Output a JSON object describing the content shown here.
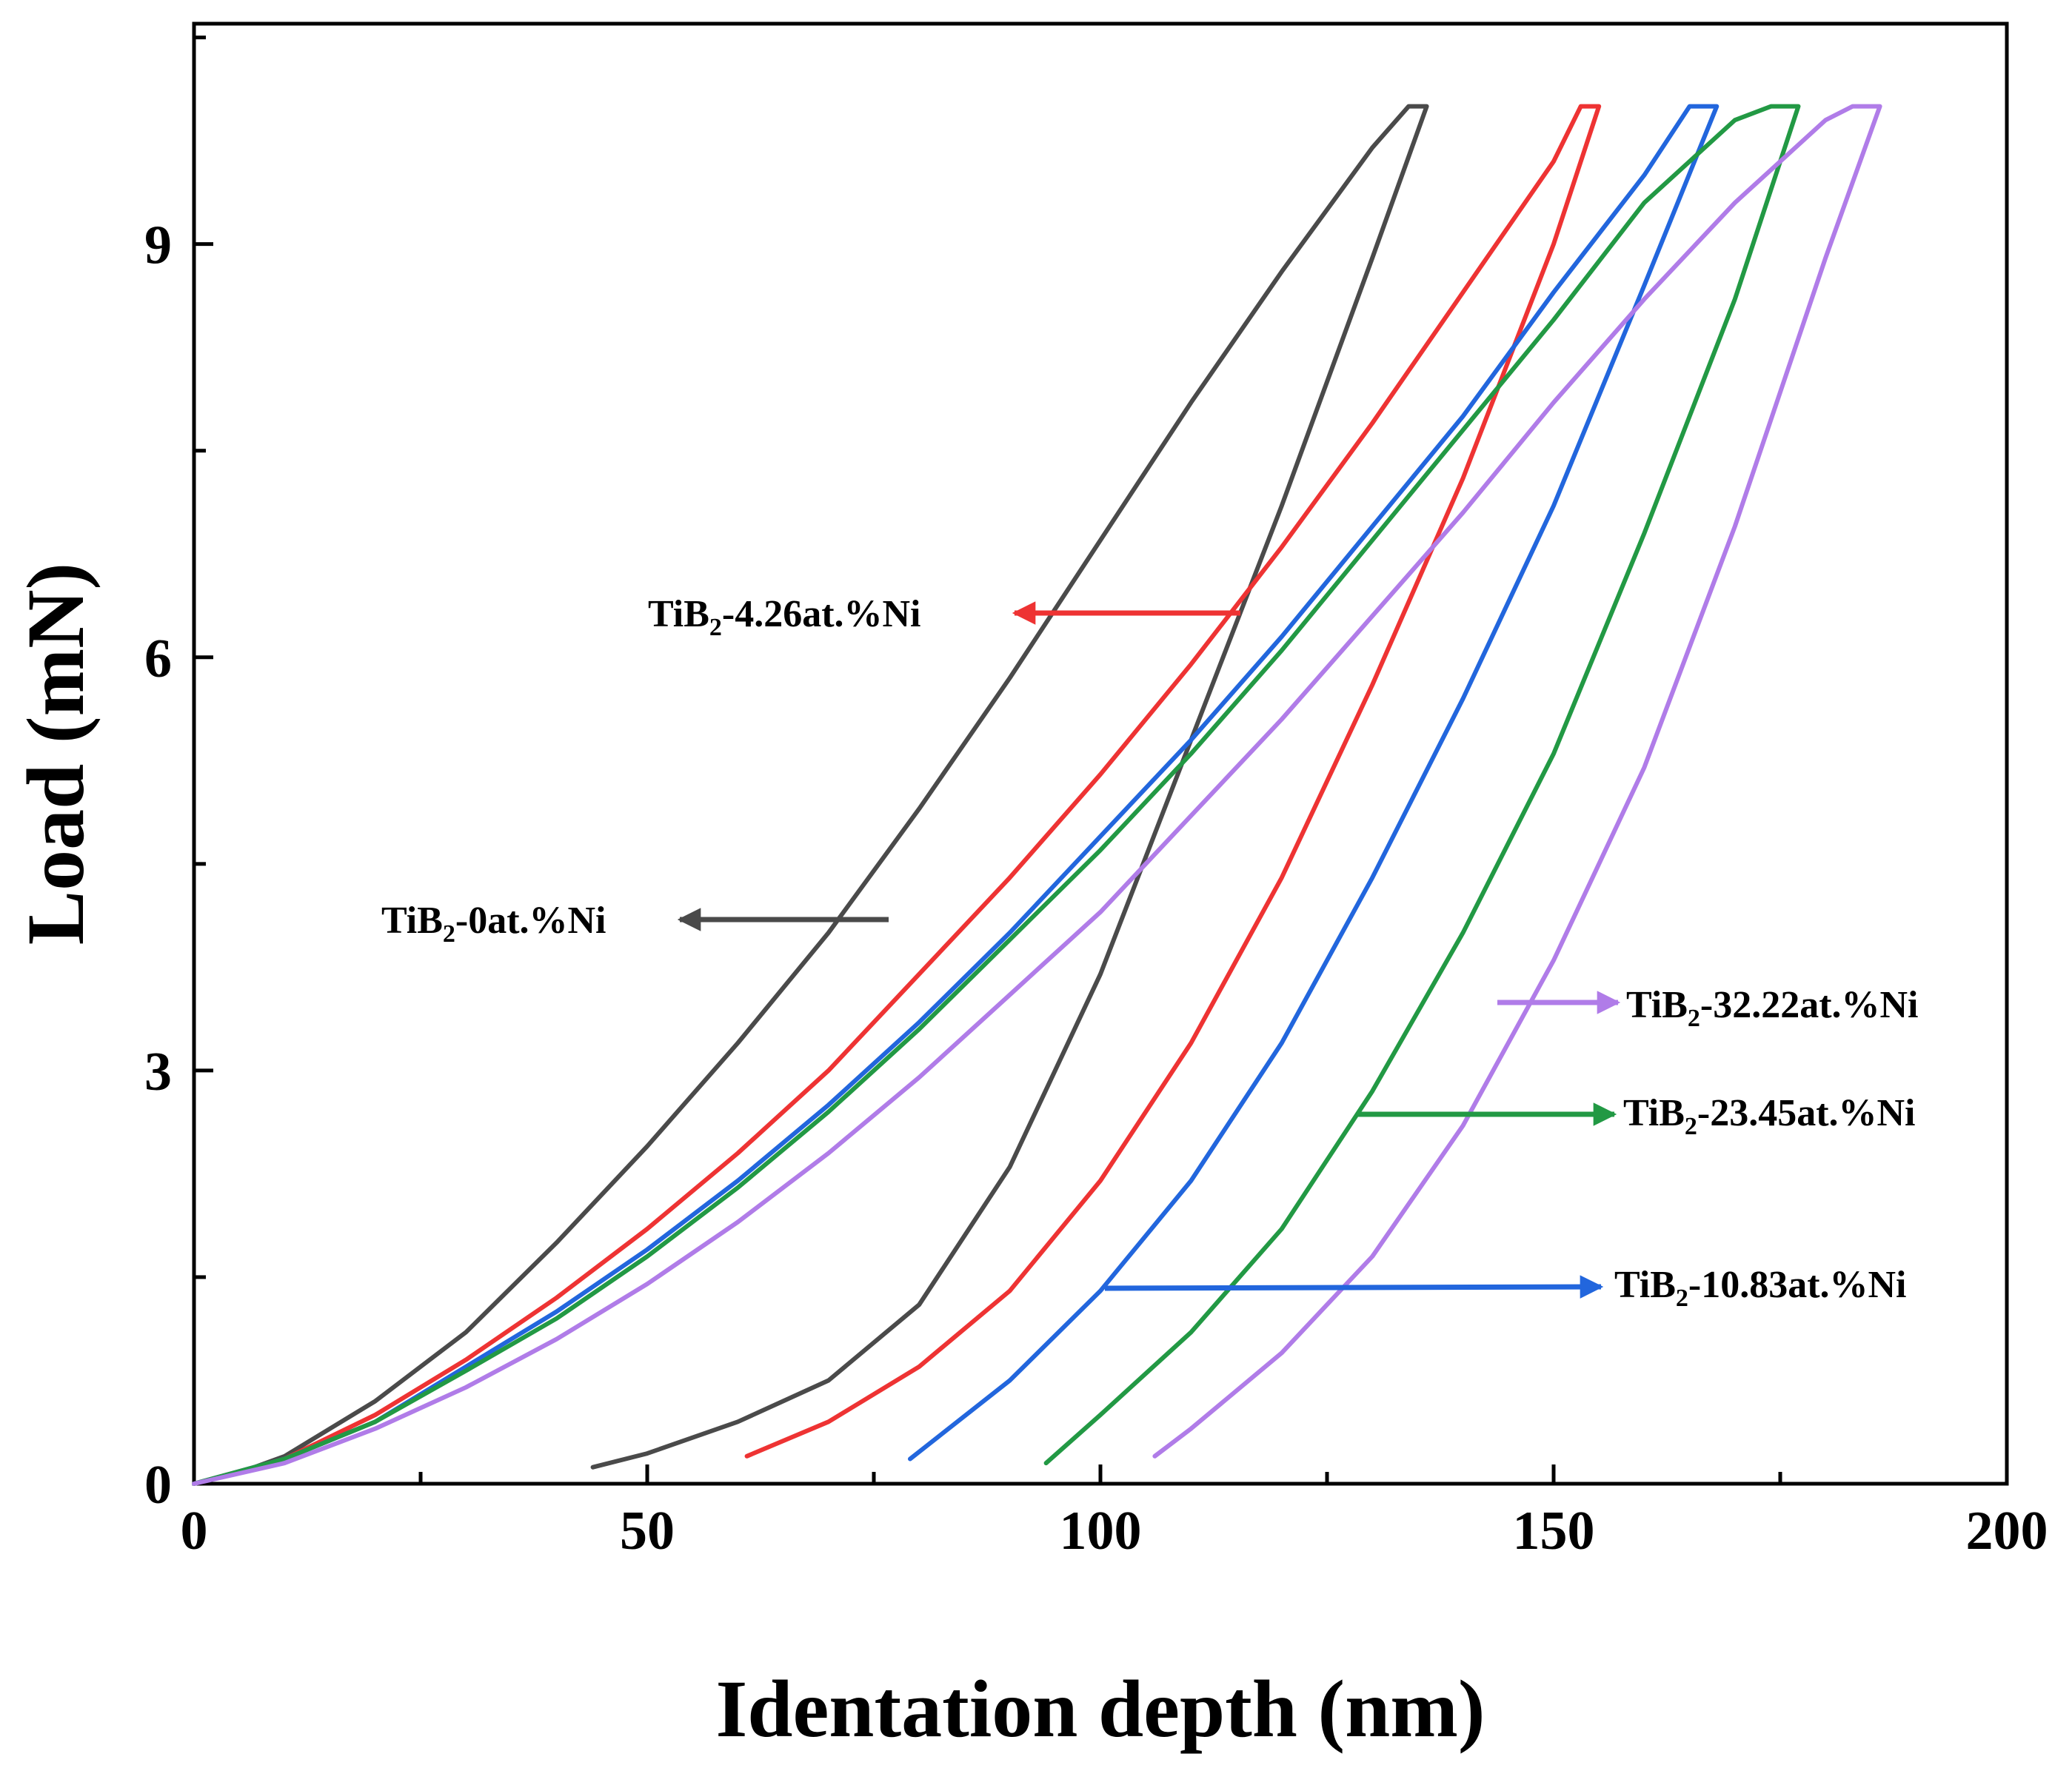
{
  "chart_data": {
    "type": "line",
    "title": "",
    "xlabel": "Identation depth (nm)",
    "ylabel": "Load (mN)",
    "xlim": [
      0,
      200
    ],
    "ylim": [
      0,
      10.6
    ],
    "xticks": [
      0,
      50,
      100,
      150,
      200
    ],
    "yticks": [
      0,
      3,
      6,
      9
    ],
    "grid": false,
    "series": [
      {
        "name": "TiB2-0at.%Ni",
        "label_main": "TiB",
        "label_sub": "2",
        "label_rest": "-0at.%Ni",
        "color": "#4a4a4a",
        "max_depth": 136,
        "max_load": 10.0,
        "residual_depth": 44,
        "loading": [
          [
            0,
            0
          ],
          [
            5,
            0.08
          ],
          [
            10,
            0.2
          ],
          [
            20,
            0.6
          ],
          [
            30,
            1.1
          ],
          [
            40,
            1.75
          ],
          [
            50,
            2.45
          ],
          [
            60,
            3.2
          ],
          [
            70,
            4.0
          ],
          [
            80,
            4.9
          ],
          [
            90,
            5.85
          ],
          [
            100,
            6.85
          ],
          [
            110,
            7.85
          ],
          [
            120,
            8.8
          ],
          [
            130,
            9.7
          ],
          [
            134,
            10.0
          ]
        ],
        "unloading": [
          [
            136,
            10.0
          ],
          [
            130,
            8.9
          ],
          [
            120,
            7.1
          ],
          [
            110,
            5.4
          ],
          [
            100,
            3.7
          ],
          [
            90,
            2.3
          ],
          [
            80,
            1.3
          ],
          [
            70,
            0.75
          ],
          [
            60,
            0.45
          ],
          [
            50,
            0.22
          ],
          [
            44,
            0.12
          ]
        ]
      },
      {
        "name": "TiB2-4.26at.%Ni",
        "label_main": "TiB",
        "label_sub": "2",
        "label_rest": "-4.26at.%Ni",
        "color": "#ee3333",
        "max_depth": 155,
        "max_load": 10.0,
        "residual_depth": 61,
        "loading": [
          [
            0,
            0
          ],
          [
            10,
            0.18
          ],
          [
            20,
            0.5
          ],
          [
            30,
            0.9
          ],
          [
            40,
            1.35
          ],
          [
            50,
            1.85
          ],
          [
            60,
            2.4
          ],
          [
            70,
            3.0
          ],
          [
            80,
            3.7
          ],
          [
            90,
            4.4
          ],
          [
            100,
            5.15
          ],
          [
            110,
            5.95
          ],
          [
            120,
            6.8
          ],
          [
            130,
            7.7
          ],
          [
            140,
            8.65
          ],
          [
            150,
            9.6
          ],
          [
            153,
            10.0
          ]
        ],
        "unloading": [
          [
            155,
            10.0
          ],
          [
            150,
            9.0
          ],
          [
            140,
            7.3
          ],
          [
            130,
            5.8
          ],
          [
            120,
            4.4
          ],
          [
            110,
            3.2
          ],
          [
            100,
            2.2
          ],
          [
            90,
            1.4
          ],
          [
            80,
            0.85
          ],
          [
            70,
            0.45
          ],
          [
            61,
            0.2
          ]
        ]
      },
      {
        "name": "TiB2-10.83at.%Ni",
        "label_main": "TiB",
        "label_sub": "2",
        "label_rest": "-10.83at.%Ni",
        "color": "#2266dd",
        "max_depth": 168,
        "max_load": 10.0,
        "residual_depth": 79,
        "loading": [
          [
            0,
            0
          ],
          [
            10,
            0.18
          ],
          [
            20,
            0.45
          ],
          [
            30,
            0.85
          ],
          [
            40,
            1.25
          ],
          [
            50,
            1.7
          ],
          [
            60,
            2.2
          ],
          [
            70,
            2.75
          ],
          [
            80,
            3.35
          ],
          [
            90,
            4.0
          ],
          [
            100,
            4.7
          ],
          [
            110,
            5.4
          ],
          [
            120,
            6.15
          ],
          [
            130,
            6.95
          ],
          [
            140,
            7.75
          ],
          [
            150,
            8.65
          ],
          [
            160,
            9.5
          ],
          [
            165,
            10.0
          ]
        ],
        "unloading": [
          [
            168,
            10.0
          ],
          [
            160,
            8.7
          ],
          [
            150,
            7.1
          ],
          [
            140,
            5.7
          ],
          [
            130,
            4.4
          ],
          [
            120,
            3.2
          ],
          [
            110,
            2.2
          ],
          [
            100,
            1.4
          ],
          [
            90,
            0.75
          ],
          [
            79,
            0.18
          ]
        ]
      },
      {
        "name": "TiB2-23.45at.%Ni",
        "label_main": "TiB",
        "label_sub": "2",
        "label_rest": "-23.45at.%Ni",
        "color": "#229944",
        "max_depth": 177,
        "max_load": 10.0,
        "residual_depth": 94,
        "loading": [
          [
            0,
            0
          ],
          [
            10,
            0.18
          ],
          [
            20,
            0.45
          ],
          [
            30,
            0.82
          ],
          [
            40,
            1.2
          ],
          [
            50,
            1.65
          ],
          [
            60,
            2.15
          ],
          [
            70,
            2.7
          ],
          [
            80,
            3.3
          ],
          [
            90,
            3.95
          ],
          [
            100,
            4.6
          ],
          [
            110,
            5.3
          ],
          [
            120,
            6.05
          ],
          [
            130,
            6.85
          ],
          [
            140,
            7.65
          ],
          [
            150,
            8.45
          ],
          [
            160,
            9.3
          ],
          [
            170,
            9.9
          ],
          [
            174,
            10.0
          ]
        ],
        "unloading": [
          [
            177,
            10.0
          ],
          [
            170,
            8.6
          ],
          [
            160,
            6.9
          ],
          [
            150,
            5.3
          ],
          [
            140,
            4.0
          ],
          [
            130,
            2.85
          ],
          [
            120,
            1.85
          ],
          [
            110,
            1.1
          ],
          [
            100,
            0.5
          ],
          [
            94,
            0.15
          ]
        ]
      },
      {
        "name": "TiB2-32.22at.%Ni",
        "label_main": "TiB",
        "label_sub": "2",
        "label_rest": "-32.22at.%Ni",
        "color": "#b07ce8",
        "max_depth": 186,
        "max_load": 10.0,
        "residual_depth": 106,
        "loading": [
          [
            0,
            0
          ],
          [
            10,
            0.15
          ],
          [
            20,
            0.4
          ],
          [
            30,
            0.7
          ],
          [
            40,
            1.05
          ],
          [
            50,
            1.45
          ],
          [
            60,
            1.9
          ],
          [
            70,
            2.4
          ],
          [
            80,
            2.95
          ],
          [
            90,
            3.55
          ],
          [
            100,
            4.15
          ],
          [
            110,
            4.85
          ],
          [
            120,
            5.55
          ],
          [
            130,
            6.3
          ],
          [
            140,
            7.05
          ],
          [
            150,
            7.85
          ],
          [
            160,
            8.6
          ],
          [
            170,
            9.3
          ],
          [
            180,
            9.9
          ],
          [
            183,
            10.0
          ]
        ],
        "unloading": [
          [
            186,
            10.0
          ],
          [
            180,
            8.9
          ],
          [
            170,
            6.95
          ],
          [
            160,
            5.2
          ],
          [
            150,
            3.8
          ],
          [
            140,
            2.6
          ],
          [
            130,
            1.65
          ],
          [
            120,
            0.95
          ],
          [
            110,
            0.4
          ],
          [
            106,
            0.2
          ]
        ]
      }
    ],
    "annotations": [
      {
        "series": "TiB2-4.26at.%Ni",
        "direction": "left"
      },
      {
        "series": "TiB2-0at.%Ni",
        "direction": "left"
      },
      {
        "series": "TiB2-32.22at.%Ni",
        "direction": "right"
      },
      {
        "series": "TiB2-23.45at.%Ni",
        "direction": "right"
      },
      {
        "series": "TiB2-10.83at.%Ni",
        "direction": "right"
      }
    ]
  }
}
